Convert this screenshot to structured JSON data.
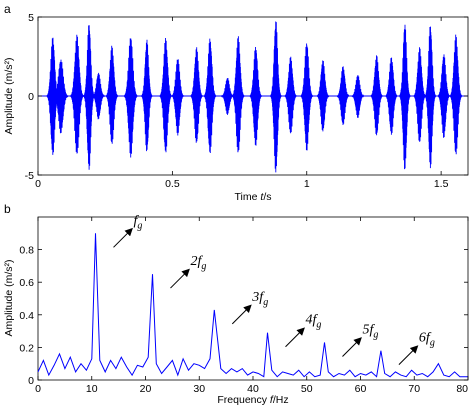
{
  "chart_data": [
    {
      "panel": "a",
      "type": "line",
      "xlabel_prefix": "Time ",
      "xlabel_var": "t",
      "xlabel_unit": "/s",
      "ylabel": "Amplitude (m/s²)",
      "xlim": [
        0,
        1.6
      ],
      "ylim": [
        -5,
        5
      ],
      "x_ticks": [
        "0",
        "0.5",
        "1",
        "1.5"
      ],
      "x_tick_values": [
        0,
        0.5,
        1,
        1.5
      ],
      "y_ticks": [
        "-5",
        "0",
        "5"
      ],
      "y_tick_values": [
        -5,
        0,
        5
      ],
      "line_color": "#0000ff",
      "bursts": [
        {
          "t": 0.055,
          "amp": 3.8,
          "w": 0.01
        },
        {
          "t": 0.085,
          "amp": 2.4,
          "w": 0.012
        },
        {
          "t": 0.145,
          "amp": 3.9,
          "w": 0.011
        },
        {
          "t": 0.19,
          "amp": 4.7,
          "w": 0.009
        },
        {
          "t": 0.225,
          "amp": 1.5,
          "w": 0.01
        },
        {
          "t": 0.275,
          "amp": 3.2,
          "w": 0.01
        },
        {
          "t": 0.345,
          "amp": 3.9,
          "w": 0.011
        },
        {
          "t": 0.405,
          "amp": 3.6,
          "w": 0.009
        },
        {
          "t": 0.475,
          "amp": 3.7,
          "w": 0.01
        },
        {
          "t": 0.52,
          "amp": 2.5,
          "w": 0.01
        },
        {
          "t": 0.59,
          "amp": 3.1,
          "w": 0.01
        },
        {
          "t": 0.64,
          "amp": 3.7,
          "w": 0.01
        },
        {
          "t": 0.705,
          "amp": 1.2,
          "w": 0.01
        },
        {
          "t": 0.745,
          "amp": 3.8,
          "w": 0.01
        },
        {
          "t": 0.81,
          "amp": 3.2,
          "w": 0.01
        },
        {
          "t": 0.885,
          "amp": 4.9,
          "w": 0.009
        },
        {
          "t": 0.94,
          "amp": 2.5,
          "w": 0.01
        },
        {
          "t": 1.0,
          "amp": 3.5,
          "w": 0.01
        },
        {
          "t": 1.06,
          "amp": 2.3,
          "w": 0.01
        },
        {
          "t": 1.135,
          "amp": 1.9,
          "w": 0.01
        },
        {
          "t": 1.19,
          "amp": 1.4,
          "w": 0.01
        },
        {
          "t": 1.26,
          "amp": 2.6,
          "w": 0.01
        },
        {
          "t": 1.315,
          "amp": 2.5,
          "w": 0.01
        },
        {
          "t": 1.365,
          "amp": 4.7,
          "w": 0.009
        },
        {
          "t": 1.42,
          "amp": 3.1,
          "w": 0.01
        },
        {
          "t": 1.46,
          "amp": 4.6,
          "w": 0.009
        },
        {
          "t": 1.51,
          "amp": 2.7,
          "w": 0.01
        },
        {
          "t": 1.555,
          "amp": 3.9,
          "w": 0.01
        }
      ]
    },
    {
      "panel": "b",
      "type": "line",
      "xlabel_prefix": "Frequency ",
      "xlabel_var": "f",
      "xlabel_unit": "/Hz",
      "ylabel": "Amplitude (m/s²)",
      "xlim": [
        0,
        80
      ],
      "ylim": [
        0,
        1
      ],
      "x_ticks": [
        "0",
        "10",
        "20",
        "30",
        "40",
        "50",
        "60",
        "70",
        "80"
      ],
      "x_tick_values": [
        0,
        10,
        20,
        30,
        40,
        50,
        60,
        70,
        80
      ],
      "y_ticks": [
        "0",
        "0.2",
        "0.4",
        "0.6",
        "0.8"
      ],
      "y_tick_values": [
        0,
        0.2,
        0.4,
        0.6,
        0.8
      ],
      "line_color": "#0000ff",
      "x": [
        0,
        1,
        2,
        3,
        4,
        5,
        6,
        7,
        8,
        9,
        10,
        10.7,
        11.5,
        12.5,
        13.5,
        14.5,
        15.5,
        16.5,
        17.5,
        18.5,
        19.5,
        20.5,
        21.3,
        22,
        23,
        24,
        25,
        26,
        27,
        28,
        29,
        30,
        31,
        32,
        32.8,
        34,
        35,
        36,
        37,
        38,
        39,
        40,
        41,
        42,
        42.7,
        43.5,
        44.5,
        45.5,
        46.5,
        47.5,
        48.5,
        49.5,
        50.5,
        51.5,
        52.5,
        53.3,
        54,
        55,
        56,
        57,
        58,
        59,
        60,
        61,
        62,
        63,
        63.8,
        64.5,
        65.5,
        66.5,
        67.5,
        68.5,
        69.5,
        70.5,
        71.5,
        72.5,
        73.5,
        74.5,
        75.5,
        76.5,
        77.5,
        78.5,
        80
      ],
      "y": [
        0.05,
        0.12,
        0.03,
        0.09,
        0.16,
        0.07,
        0.14,
        0.05,
        0.1,
        0.06,
        0.13,
        0.9,
        0.12,
        0.05,
        0.12,
        0.07,
        0.14,
        0.08,
        0.03,
        0.09,
        0.08,
        0.14,
        0.65,
        0.1,
        0.04,
        0.08,
        0.12,
        0.03,
        0.13,
        0.06,
        0.1,
        0.09,
        0.07,
        0.13,
        0.43,
        0.07,
        0.04,
        0.07,
        0.05,
        0.07,
        0.03,
        0.05,
        0.04,
        0.02,
        0.29,
        0.06,
        0.02,
        0.05,
        0.04,
        0.03,
        0.06,
        0.02,
        0.05,
        0.02,
        0.03,
        0.23,
        0.05,
        0.02,
        0.04,
        0.03,
        0.06,
        0.02,
        0.04,
        0.03,
        0.05,
        0.02,
        0.18,
        0.04,
        0.02,
        0.05,
        0.03,
        0.02,
        0.06,
        0.03,
        0.04,
        0.02,
        0.05,
        0.1,
        0.03,
        0.02,
        0.05,
        0.02,
        0.02
      ],
      "annotations": [
        {
          "base": "f",
          "coef": "",
          "sub": "g",
          "peak_x": 10.7,
          "peak_y": 0.9
        },
        {
          "base": "f",
          "coef": "2",
          "sub": "g",
          "peak_x": 21.3,
          "peak_y": 0.65
        },
        {
          "base": "f",
          "coef": "3",
          "sub": "g",
          "peak_x": 32.8,
          "peak_y": 0.43
        },
        {
          "base": "f",
          "coef": "4",
          "sub": "g",
          "peak_x": 42.7,
          "peak_y": 0.29
        },
        {
          "base": "f",
          "coef": "5",
          "sub": "g",
          "peak_x": 53.3,
          "peak_y": 0.23
        },
        {
          "base": "f",
          "coef": "6",
          "sub": "g",
          "peak_x": 63.8,
          "peak_y": 0.18
        }
      ]
    }
  ]
}
